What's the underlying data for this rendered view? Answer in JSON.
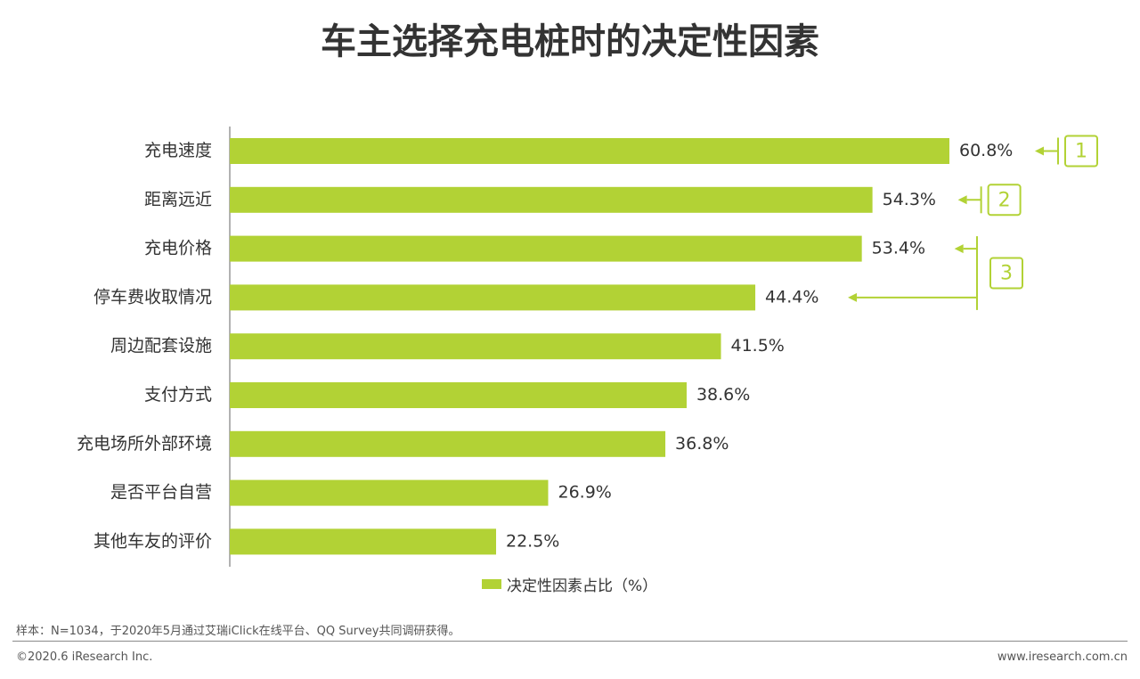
{
  "title": "车主选择充电桩时的决定性因素",
  "colors": {
    "bar": "#b2d235",
    "accent": "#b2d235",
    "axis": "#666666"
  },
  "chart_data": {
    "type": "bar",
    "orientation": "horizontal",
    "categories": [
      "充电速度",
      "距离远近",
      "充电价格",
      "停车费收取情况",
      "周边配套设施",
      "支付方式",
      "充电场所外部环境",
      "是否平台自营",
      "其他车友的评价"
    ],
    "series": [
      {
        "name": "决定性因素占比（%）",
        "values": [
          60.8,
          54.3,
          53.4,
          44.4,
          41.5,
          38.6,
          36.8,
          26.9,
          22.5
        ]
      }
    ],
    "value_labels": [
      "60.8%",
      "54.3%",
      "53.4%",
      "44.4%",
      "41.5%",
      "38.6%",
      "36.8%",
      "26.9%",
      "22.5%"
    ],
    "xlim": [
      0,
      70
    ],
    "legend_position": "bottom-center",
    "grid": false,
    "annotations": [
      {
        "text": "1",
        "categories": [
          "充电速度"
        ]
      },
      {
        "text": "2",
        "categories": [
          "距离远近"
        ]
      },
      {
        "text": "3",
        "categories": [
          "充电价格",
          "停车费收取情况"
        ]
      }
    ]
  },
  "footer": {
    "note": "样本：N=1034，于2020年5月通过艾瑞iClick在线平台、QQ Survey共同调研获得。",
    "copyright": "©2020.6 iResearch Inc.",
    "website": "www.iresearch.com.cn"
  }
}
